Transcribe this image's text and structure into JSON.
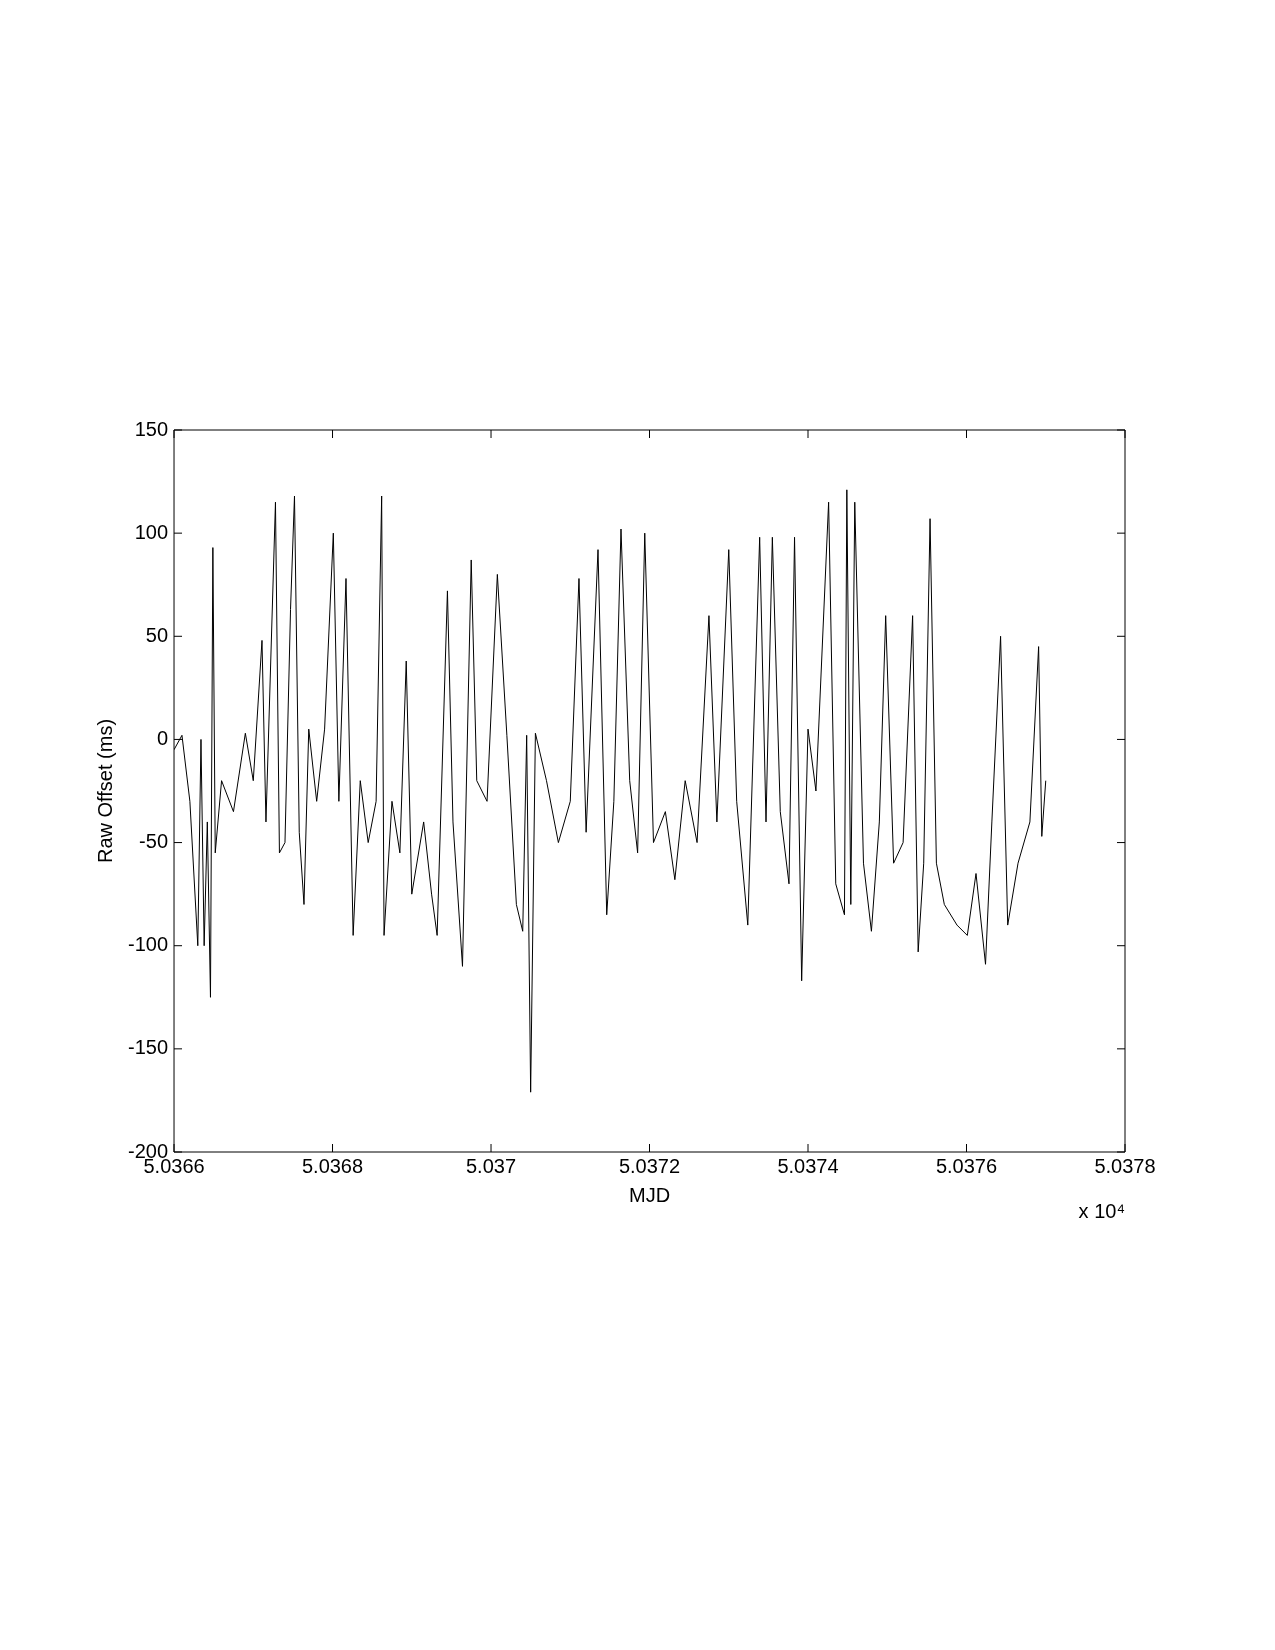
{
  "chart_data": {
    "type": "line",
    "xlabel": "MJD",
    "ylabel": "Raw Offset (ms)",
    "annotations": [
      "x 10⁴"
    ],
    "xlim": [
      5.0366,
      5.0378
    ],
    "xticks": [
      5.0366,
      5.0368,
      5.037,
      5.0372,
      5.0374,
      5.0376,
      5.0378
    ],
    "ylim": [
      -200,
      150
    ],
    "yticks": [
      -200,
      -150,
      -100,
      -50,
      0,
      50,
      100,
      150
    ],
    "grid": false,
    "legend": false,
    "marker": "none",
    "line_style": "solid",
    "series": [
      {
        "color": "#000000",
        "x": [
          5.0366,
          5.03661,
          5.03662,
          5.03663,
          5.036634,
          5.036638,
          5.036642,
          5.036646,
          5.036649,
          5.036652,
          5.03666,
          5.036675,
          5.03669,
          5.0367,
          5.036711,
          5.036716,
          5.036728,
          5.036733,
          5.03674,
          5.036747,
          5.036752,
          5.036758,
          5.036764,
          5.03677,
          5.03678,
          5.03679,
          5.036801,
          5.036808,
          5.036817,
          5.036826,
          5.036835,
          5.036845,
          5.036855,
          5.036862,
          5.036865,
          5.036875,
          5.036885,
          5.036893,
          5.0369,
          5.036915,
          5.036925,
          5.036932,
          5.036945,
          5.036952,
          5.036964,
          5.036975,
          5.036982,
          5.036995,
          5.037008,
          5.03702,
          5.037032,
          5.03704,
          5.037045,
          5.03705,
          5.037056,
          5.03707,
          5.037085,
          5.0371,
          5.037111,
          5.03712,
          5.037135,
          5.037146,
          5.037155,
          5.037164,
          5.037175,
          5.037185,
          5.037194,
          5.037205,
          5.03722,
          5.037232,
          5.037245,
          5.03726,
          5.037275,
          5.037285,
          5.0373,
          5.03731,
          5.037324,
          5.037339,
          5.037347,
          5.037355,
          5.037365,
          5.037376,
          5.037383,
          5.037392,
          5.0374,
          5.03741,
          5.037426,
          5.037435,
          5.037446,
          5.037449,
          5.037454,
          5.037459,
          5.03747,
          5.03748,
          5.03749,
          5.037498,
          5.037508,
          5.03752,
          5.037532,
          5.037539,
          5.037546,
          5.037554,
          5.037562,
          5.037572,
          5.037588,
          5.037601,
          5.037612,
          5.037624,
          5.037632,
          5.037643,
          5.037652,
          5.037665,
          5.03768,
          5.037691,
          5.037695,
          5.0377
        ],
        "values": [
          -5,
          2,
          -30,
          -100,
          0,
          -100,
          -40,
          -125,
          93,
          -55,
          -20,
          -35,
          3,
          -20,
          48,
          -40,
          115,
          -55,
          -50,
          63,
          118,
          -45,
          -80,
          5,
          -30,
          5,
          100,
          -30,
          78,
          -95,
          -20,
          -50,
          -30,
          118,
          -95,
          -30,
          -55,
          38,
          -75,
          -40,
          -75,
          -95,
          72,
          -40,
          -110,
          87,
          -20,
          -30,
          80,
          2,
          -80,
          -93,
          2,
          -171,
          3,
          -20,
          -50,
          -30,
          78,
          -45,
          92,
          -85,
          -30,
          102,
          -20,
          -55,
          100,
          -50,
          -35,
          -68,
          -20,
          -50,
          60,
          -40,
          92,
          -30,
          -90,
          98,
          -40,
          98,
          -35,
          -70,
          98,
          -117,
          5,
          -25,
          115,
          -70,
          -85,
          121,
          -80,
          115,
          -60,
          -93,
          -40,
          60,
          -60,
          -50,
          60,
          -103,
          -60,
          107,
          -60,
          -80,
          -90,
          -95,
          -65,
          -109,
          -40,
          50,
          -90,
          -60,
          -40,
          45,
          -47,
          -20
        ]
      }
    ]
  }
}
